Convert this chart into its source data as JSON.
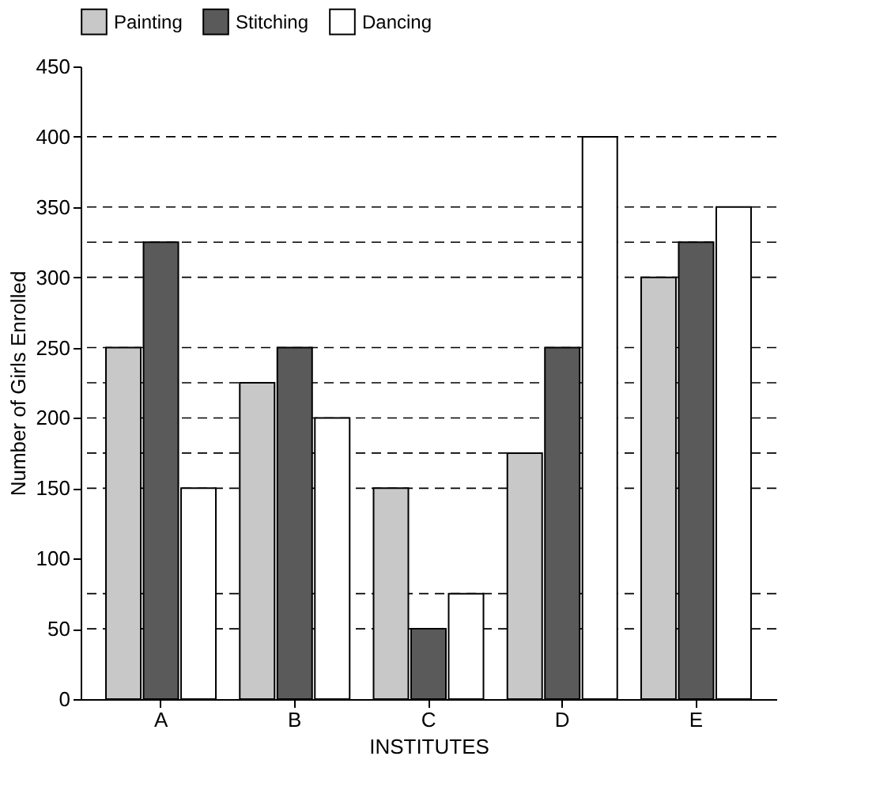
{
  "chart_data": {
    "type": "bar",
    "xlabel": "INSTITUTES",
    "ylabel": "Number of Girls Enrolled",
    "categories": [
      "A",
      "B",
      "C",
      "D",
      "E"
    ],
    "series": [
      {
        "name": "Painting",
        "color": "#c8c8c8",
        "values": [
          250,
          225,
          150,
          175,
          300
        ]
      },
      {
        "name": "Stitching",
        "color": "#5a5a5a",
        "values": [
          325,
          250,
          50,
          250,
          325
        ]
      },
      {
        "name": "Dancing",
        "color": "#ffffff",
        "values": [
          150,
          200,
          75,
          400,
          350
        ]
      }
    ],
    "ylim": [
      0,
      450
    ],
    "yticks": [
      0,
      50,
      100,
      150,
      200,
      250,
      300,
      350,
      400,
      450
    ],
    "ref_lines": [
      {
        "axis": "y",
        "value": 400,
        "color": "#000000",
        "line_style": "dashed"
      },
      {
        "axis": "y",
        "value": 350,
        "color": "#000000",
        "line_style": "dashed"
      },
      {
        "axis": "y",
        "value": 325,
        "color": "#000000",
        "line_style": "dashed"
      },
      {
        "axis": "y",
        "value": 300,
        "color": "#000000",
        "line_style": "dashed"
      },
      {
        "axis": "y",
        "value": 250,
        "color": "#000000",
        "line_style": "dashed"
      },
      {
        "axis": "y",
        "value": 225,
        "color": "#000000",
        "line_style": "dashed"
      },
      {
        "axis": "y",
        "value": 200,
        "color": "#000000",
        "line_style": "dashed"
      },
      {
        "axis": "y",
        "value": 175,
        "color": "#000000",
        "line_style": "dashed"
      },
      {
        "axis": "y",
        "value": 150,
        "color": "#000000",
        "line_style": "dashed"
      },
      {
        "axis": "y",
        "value": 75,
        "color": "#000000",
        "line_style": "dashed"
      },
      {
        "axis": "y",
        "value": 50,
        "color": "#000000",
        "line_style": "dashed"
      }
    ],
    "legend": "top"
  }
}
